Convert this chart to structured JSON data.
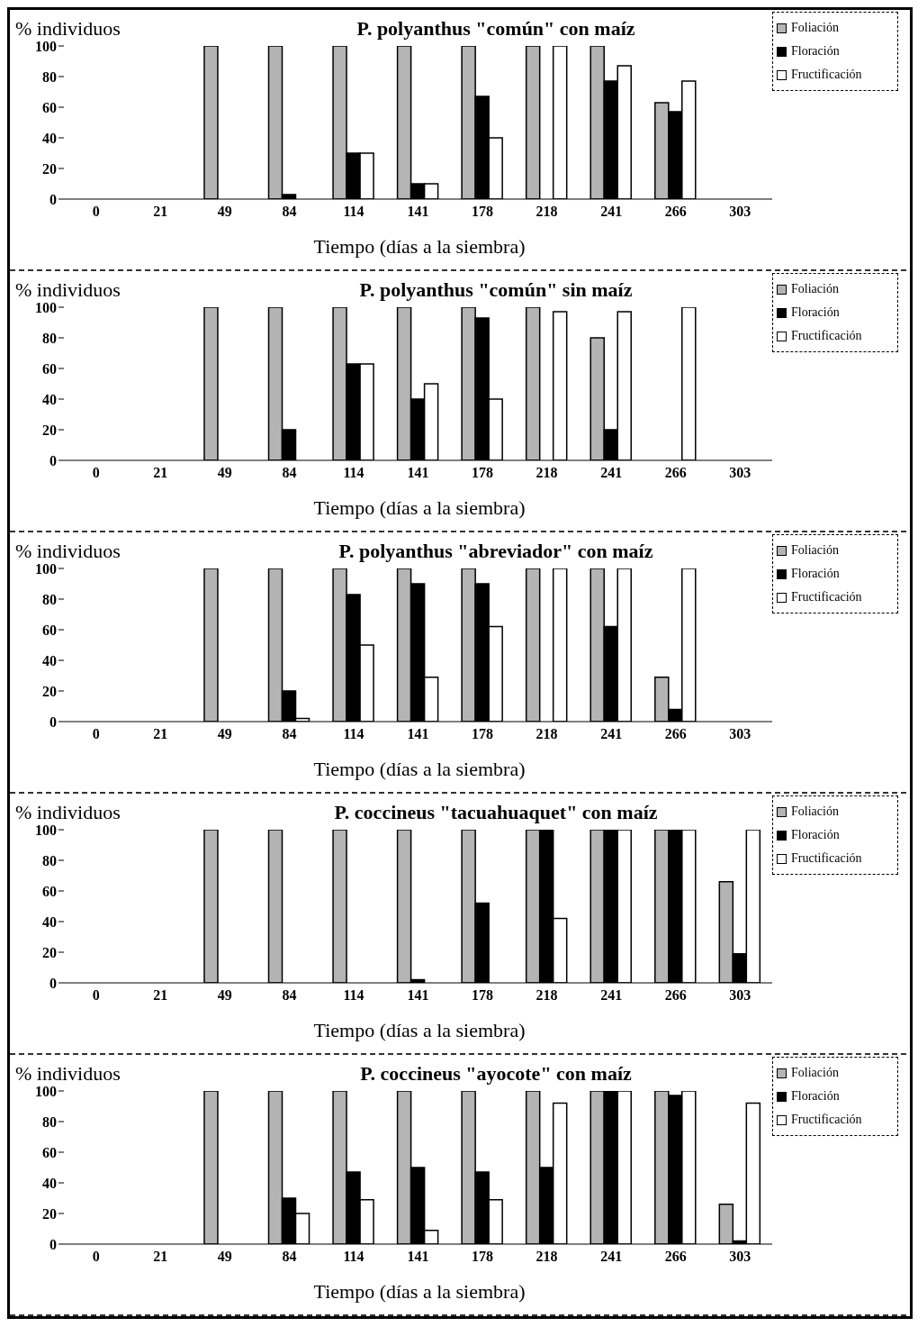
{
  "chart_data": [
    {
      "type": "bar",
      "title": "P. polyanthus \"común\" con maíz",
      "ylabel": "% individuos",
      "xlabel": "Tiempo (días a la siembra)",
      "categories": [
        "0",
        "21",
        "49",
        "84",
        "114",
        "141",
        "178",
        "218",
        "241",
        "266",
        "303"
      ],
      "ylim": [
        0,
        100
      ],
      "yticks": [
        0,
        20,
        40,
        60,
        80,
        100
      ],
      "grid": false,
      "legend": "top right",
      "series": [
        {
          "name": "Foliación",
          "color": "#b4b4b4",
          "values": [
            0,
            0,
            100,
            100,
            100,
            100,
            100,
            100,
            100,
            63,
            0
          ]
        },
        {
          "name": "Floración",
          "color": "#000000",
          "values": [
            0,
            0,
            0,
            3,
            30,
            10,
            67,
            0,
            77,
            57,
            0
          ]
        },
        {
          "name": "Fructificación",
          "color": "#ffffff",
          "values": [
            0,
            0,
            0,
            0,
            30,
            10,
            40,
            100,
            87,
            77,
            0
          ]
        }
      ]
    },
    {
      "type": "bar",
      "title": "P. polyanthus \"común\" sin maíz",
      "ylabel": "% individuos",
      "xlabel": "Tiempo (días a la siembra)",
      "categories": [
        "0",
        "21",
        "49",
        "84",
        "114",
        "141",
        "178",
        "218",
        "241",
        "266",
        "303"
      ],
      "ylim": [
        0,
        100
      ],
      "yticks": [
        0,
        20,
        40,
        60,
        80,
        100
      ],
      "grid": false,
      "legend": "top right",
      "series": [
        {
          "name": "Foliación",
          "color": "#b4b4b4",
          "values": [
            0,
            0,
            100,
            100,
            100,
            100,
            100,
            100,
            80,
            0,
            0
          ]
        },
        {
          "name": "Floración",
          "color": "#000000",
          "values": [
            0,
            0,
            0,
            20,
            63,
            40,
            93,
            0,
            20,
            0,
            0
          ]
        },
        {
          "name": "Fructificación",
          "color": "#ffffff",
          "values": [
            0,
            0,
            0,
            0,
            63,
            50,
            40,
            97,
            97,
            100,
            0
          ]
        }
      ]
    },
    {
      "type": "bar",
      "title": "P. polyanthus \"abreviador\" con maíz",
      "ylabel": "% individuos",
      "xlabel": "Tiempo (días a la siembra)",
      "categories": [
        "0",
        "21",
        "49",
        "84",
        "114",
        "141",
        "178",
        "218",
        "241",
        "266",
        "303"
      ],
      "ylim": [
        0,
        100
      ],
      "yticks": [
        0,
        20,
        40,
        60,
        80,
        100
      ],
      "grid": false,
      "legend": "top right",
      "series": [
        {
          "name": "Foliación",
          "color": "#b4b4b4",
          "values": [
            0,
            0,
            100,
            100,
            100,
            100,
            100,
            100,
            100,
            29,
            0
          ]
        },
        {
          "name": "Floración",
          "color": "#000000",
          "values": [
            0,
            0,
            0,
            20,
            83,
            90,
            90,
            0,
            62,
            8,
            0
          ]
        },
        {
          "name": "Fructificación",
          "color": "#ffffff",
          "values": [
            0,
            0,
            0,
            2,
            50,
            29,
            62,
            100,
            100,
            100,
            0
          ]
        }
      ]
    },
    {
      "type": "bar",
      "title": "P. coccineus \"tacuahuaquet\" con maíz",
      "ylabel": "% individuos",
      "xlabel": "Tiempo (días a la siembra)",
      "categories": [
        "0",
        "21",
        "49",
        "84",
        "114",
        "141",
        "178",
        "218",
        "241",
        "266",
        "303"
      ],
      "ylim": [
        0,
        100
      ],
      "yticks": [
        0,
        20,
        40,
        60,
        80,
        100
      ],
      "grid": false,
      "legend": "top right",
      "series": [
        {
          "name": "Foliación",
          "color": "#b4b4b4",
          "values": [
            0,
            0,
            100,
            100,
            100,
            100,
            100,
            100,
            100,
            100,
            66
          ]
        },
        {
          "name": "Floración",
          "color": "#000000",
          "values": [
            0,
            0,
            0,
            0,
            0,
            2,
            52,
            100,
            100,
            100,
            19
          ]
        },
        {
          "name": "Fructificación",
          "color": "#ffffff",
          "values": [
            0,
            0,
            0,
            0,
            0,
            0,
            0,
            42,
            100,
            100,
            100
          ]
        }
      ]
    },
    {
      "type": "bar",
      "title": "P. coccineus \"ayocote\" con maíz",
      "ylabel": "% individuos",
      "xlabel": "Tiempo (días a la siembra)",
      "categories": [
        "0",
        "21",
        "49",
        "84",
        "114",
        "141",
        "178",
        "218",
        "241",
        "266",
        "303"
      ],
      "ylim": [
        0,
        100
      ],
      "yticks": [
        0,
        20,
        40,
        60,
        80,
        100
      ],
      "grid": false,
      "legend": "top right",
      "series": [
        {
          "name": "Foliación",
          "color": "#b4b4b4",
          "values": [
            0,
            0,
            100,
            100,
            100,
            100,
            100,
            100,
            100,
            100,
            26
          ]
        },
        {
          "name": "Floración",
          "color": "#000000",
          "values": [
            0,
            0,
            0,
            30,
            47,
            50,
            47,
            50,
            100,
            97,
            2
          ]
        },
        {
          "name": "Fructificación",
          "color": "#ffffff",
          "values": [
            0,
            0,
            0,
            20,
            29,
            9,
            29,
            92,
            100,
            100,
            92
          ]
        }
      ]
    }
  ]
}
